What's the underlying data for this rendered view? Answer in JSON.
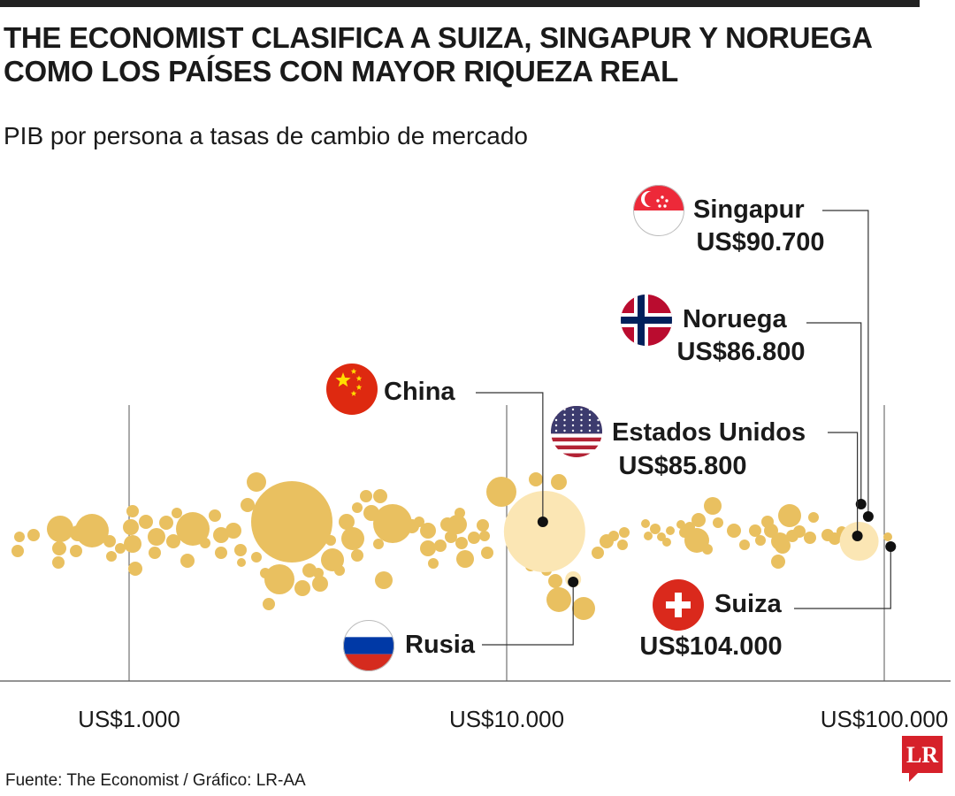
{
  "title_line1": "THE ECONOMIST CLASIFICA A SUIZA, SINGAPUR Y NORUEGA",
  "title_line2": "COMO LOS PAÍSES CON MAYOR RIQUEZA REAL",
  "subtitle": "PIB por persona a tasas de cambio de mercado",
  "source": "Fuente: The Economist / Gráfico: LR-AA",
  "logo_text": "LR",
  "colors": {
    "bubble": "#e9c060",
    "highlight": "#fbe6b4",
    "axis": "#555555",
    "leader": "#333333",
    "logo": "#d6212a"
  },
  "chart_data": {
    "type": "scatter",
    "x_scale": "log",
    "xlim": [
      300,
      150000
    ],
    "tick_values": [
      1000,
      10000,
      100000
    ],
    "tick_labels": [
      "US$1.000",
      "US$10.000",
      "US$100.000"
    ],
    "highlighted": [
      {
        "name": "China",
        "flag": "china-flag",
        "value_label": "",
        "gdp": 12600
      },
      {
        "name": "Rusia",
        "flag": "russia-flag",
        "value_label": "",
        "gdp": 15000
      },
      {
        "name": "Singapur",
        "flag": "singapore-flag",
        "value_label": "US$90.700",
        "gdp": 90700
      },
      {
        "name": "Noruega",
        "flag": "norway-flag",
        "value_label": "US$86.800",
        "gdp": 86800
      },
      {
        "name": "Estados Unidos",
        "flag": "usa-flag",
        "value_label": "US$85.800",
        "gdp": 85800
      },
      {
        "name": "Suiza",
        "flag": "switzerland-flag",
        "value_label": "US$104.000",
        "gdp": 104000
      }
    ]
  }
}
